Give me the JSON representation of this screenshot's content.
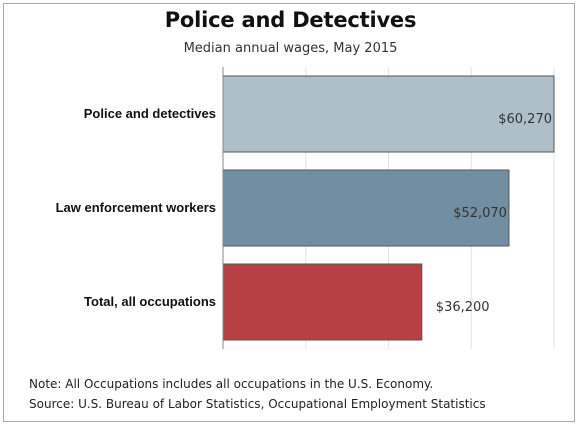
{
  "chart_data": {
    "type": "bar",
    "orientation": "horizontal",
    "title": "Police and Detectives",
    "subtitle": "Median annual wages, May 2015",
    "categories": [
      "Police and detectives",
      "Law enforcement workers",
      "Total, all occupations"
    ],
    "values": [
      60270,
      52070,
      36200
    ],
    "value_labels": [
      "$60,270",
      "$52,070",
      "$36,200"
    ],
    "colors": [
      "#aebfca",
      "#728ea3",
      "#b54145"
    ],
    "xlim": [
      0,
      60270
    ],
    "grid": true,
    "legend": "none"
  },
  "notes": {
    "note": "Note: All Occupations includes all occupations in the U.S. Economy.",
    "source": "Source: U.S. Bureau of Labor Statistics, Occupational Employment Statistics"
  }
}
